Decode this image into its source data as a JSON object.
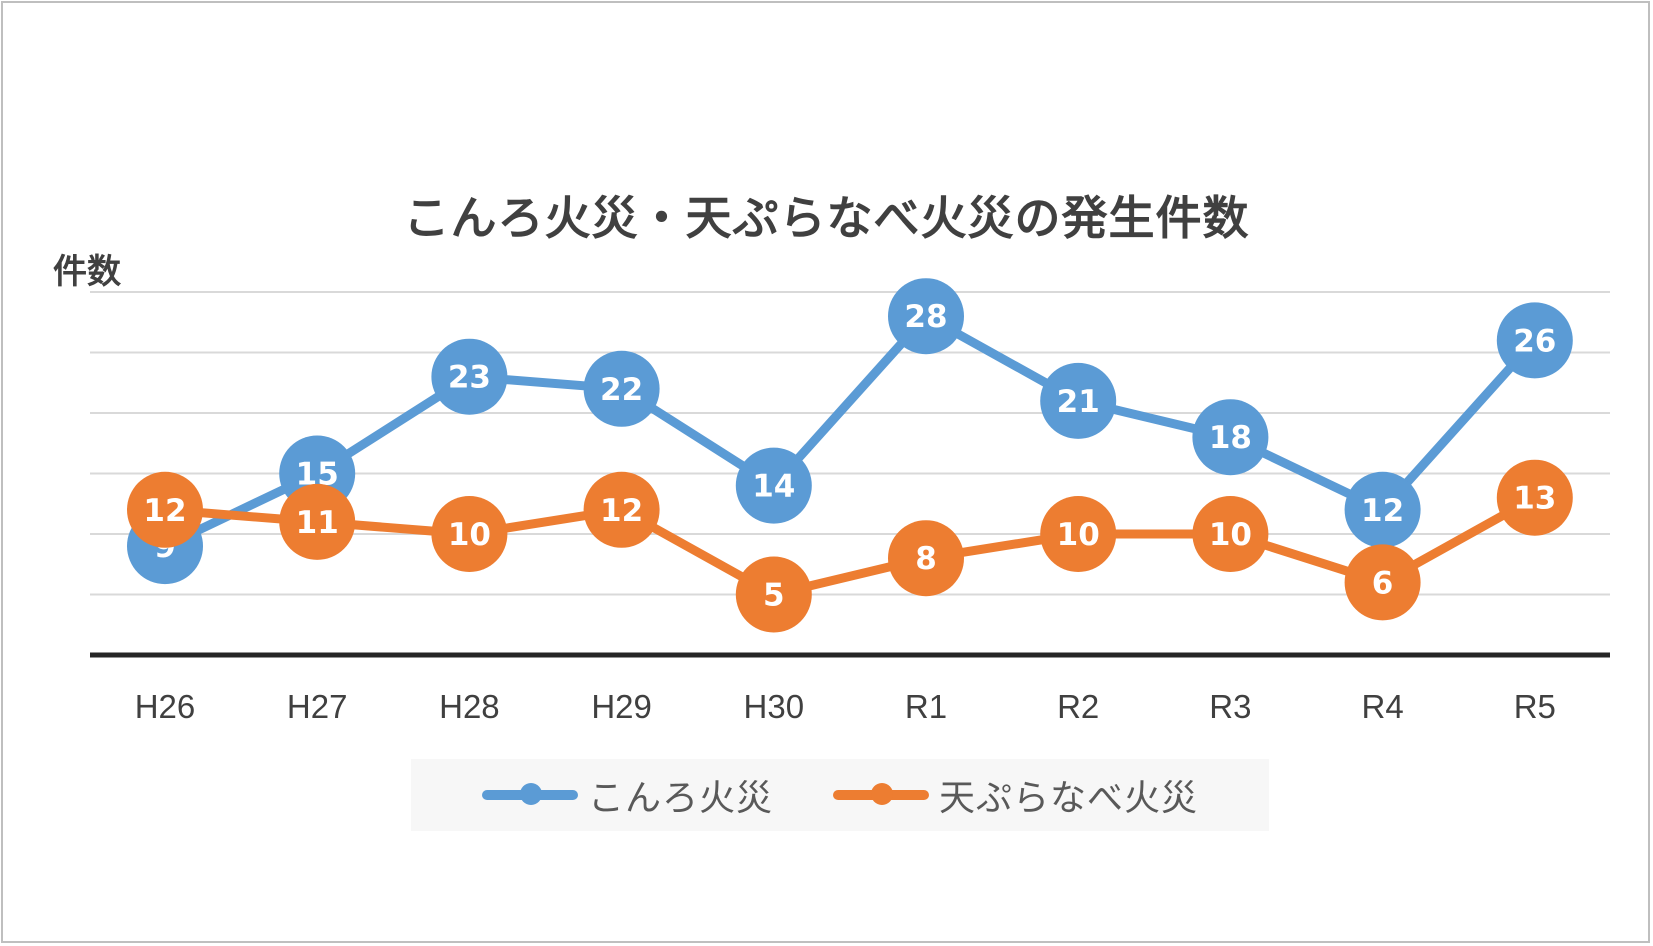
{
  "chart_data": {
    "type": "line",
    "title": "こんろ火災・天ぷらなべ火災の発生件数",
    "ylabel": "件数",
    "xlabel": "",
    "categories": [
      "H26",
      "H27",
      "H28",
      "H29",
      "H30",
      "R1",
      "R2",
      "R3",
      "R4",
      "R5"
    ],
    "ylim": [
      0,
      30
    ],
    "gridlines": [
      5,
      10,
      15,
      20,
      25,
      30
    ],
    "y_tick_labels_shown": false,
    "data_labels": true,
    "legend_position": "bottom",
    "series": [
      {
        "name": "こんろ火災",
        "color": "#5b9bd5",
        "values": [
          9,
          15,
          23,
          22,
          14,
          28,
          21,
          18,
          12,
          26
        ]
      },
      {
        "name": "天ぷらなべ火災",
        "color": "#ed7d31",
        "values": [
          12,
          11,
          10,
          12,
          5,
          8,
          10,
          10,
          6,
          13
        ]
      }
    ]
  }
}
